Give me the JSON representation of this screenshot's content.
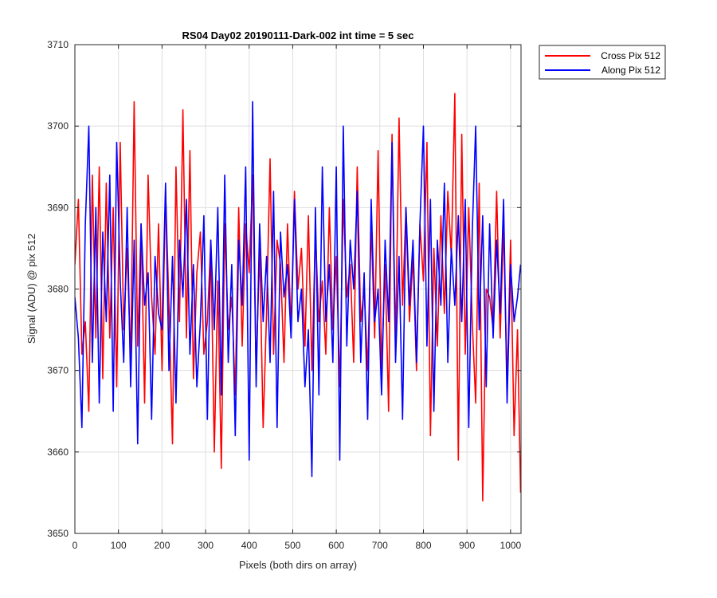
{
  "chart_data": {
    "type": "line",
    "title": "RS04 Day02 20190111-Dark-002 int time = 5 sec",
    "xlabel": "Pixels (both dirs on array)",
    "ylabel": "Signal (ADU) @ pix 512",
    "xlim": [
      0,
      1024
    ],
    "ylim": [
      3650,
      3710
    ],
    "xticks": [
      0,
      100,
      200,
      300,
      400,
      500,
      600,
      700,
      800,
      900,
      1000
    ],
    "yticks": [
      3650,
      3660,
      3670,
      3680,
      3690,
      3700,
      3710
    ],
    "grid": true,
    "legend_position": "outside-top-right",
    "series": [
      {
        "name": "Cross Pix 512",
        "color": "#ff0000",
        "x": [
          0,
          8,
          16,
          24,
          32,
          40,
          48,
          56,
          64,
          72,
          80,
          88,
          96,
          104,
          112,
          120,
          128,
          136,
          144,
          152,
          160,
          168,
          176,
          184,
          192,
          200,
          208,
          216,
          224,
          232,
          240,
          248,
          256,
          264,
          272,
          280,
          288,
          296,
          304,
          312,
          320,
          328,
          336,
          344,
          352,
          360,
          368,
          376,
          384,
          392,
          400,
          408,
          416,
          424,
          432,
          440,
          448,
          456,
          464,
          472,
          480,
          488,
          496,
          504,
          512,
          520,
          528,
          536,
          544,
          552,
          560,
          568,
          576,
          584,
          592,
          600,
          608,
          616,
          624,
          632,
          640,
          648,
          656,
          664,
          672,
          680,
          688,
          696,
          704,
          712,
          720,
          728,
          736,
          744,
          752,
          760,
          768,
          776,
          784,
          792,
          800,
          808,
          816,
          824,
          832,
          840,
          848,
          856,
          864,
          872,
          880,
          888,
          896,
          904,
          912,
          920,
          928,
          936,
          944,
          952,
          960,
          968,
          976,
          984,
          992,
          1000,
          1008,
          1016,
          1023
        ],
        "values": [
          3683,
          3691,
          3672,
          3676,
          3665,
          3694,
          3674,
          3695,
          3669,
          3693,
          3674,
          3690,
          3668,
          3698,
          3675,
          3685,
          3671,
          3703,
          3673,
          3688,
          3666,
          3694,
          3679,
          3672,
          3688,
          3670,
          3692,
          3678,
          3661,
          3695,
          3676,
          3702,
          3674,
          3697,
          3669,
          3682,
          3687,
          3672,
          3676,
          3686,
          3660,
          3681,
          3658,
          3688,
          3675,
          3679,
          3667,
          3690,
          3673,
          3688,
          3682,
          3694,
          3670,
          3685,
          3663,
          3677,
          3696,
          3672,
          3686,
          3683,
          3671,
          3688,
          3675,
          3692,
          3680,
          3685,
          3673,
          3689,
          3670,
          3687,
          3676,
          3681,
          3672,
          3690,
          3675,
          3684,
          3668,
          3691,
          3679,
          3683,
          3671,
          3695,
          3676,
          3680,
          3670,
          3688,
          3674,
          3697,
          3670,
          3683,
          3665,
          3699,
          3673,
          3701,
          3678,
          3690,
          3676,
          3684,
          3670,
          3688,
          3681,
          3698,
          3662,
          3685,
          3673,
          3689,
          3677,
          3692,
          3684,
          3704,
          3659,
          3699,
          3672,
          3690,
          3676,
          3666,
          3693,
          3654,
          3680,
          3679,
          3675,
          3692,
          3674,
          3688,
          3668,
          3686,
          3662,
          3675,
          3655
        ]
      },
      {
        "name": "Along Pix 512",
        "color": "#0000ff",
        "x": [
          0,
          8,
          16,
          24,
          32,
          40,
          48,
          56,
          64,
          72,
          80,
          88,
          96,
          104,
          112,
          120,
          128,
          136,
          144,
          152,
          160,
          168,
          176,
          184,
          192,
          200,
          208,
          216,
          224,
          232,
          240,
          248,
          256,
          264,
          272,
          280,
          288,
          296,
          304,
          312,
          320,
          328,
          336,
          344,
          352,
          360,
          368,
          376,
          384,
          392,
          400,
          408,
          416,
          424,
          432,
          440,
          448,
          456,
          464,
          472,
          480,
          488,
          496,
          504,
          512,
          520,
          528,
          536,
          544,
          552,
          560,
          568,
          576,
          584,
          592,
          600,
          608,
          616,
          624,
          632,
          640,
          648,
          656,
          664,
          672,
          680,
          688,
          696,
          704,
          712,
          720,
          728,
          736,
          744,
          752,
          760,
          768,
          776,
          784,
          792,
          800,
          808,
          816,
          824,
          832,
          840,
          848,
          856,
          864,
          872,
          880,
          888,
          896,
          904,
          912,
          920,
          928,
          936,
          944,
          952,
          960,
          968,
          976,
          984,
          992,
          1000,
          1008,
          1016,
          1023
        ],
        "values": [
          3679,
          3674,
          3663,
          3688,
          3700,
          3671,
          3690,
          3666,
          3687,
          3676,
          3694,
          3665,
          3698,
          3681,
          3671,
          3690,
          3668,
          3686,
          3661,
          3688,
          3678,
          3682,
          3664,
          3684,
          3677,
          3675,
          3693,
          3670,
          3684,
          3666,
          3686,
          3679,
          3691,
          3672,
          3683,
          3668,
          3676,
          3689,
          3664,
          3686,
          3675,
          3690,
          3667,
          3694,
          3671,
          3683,
          3662,
          3686,
          3678,
          3695,
          3659,
          3703,
          3668,
          3688,
          3676,
          3684,
          3671,
          3692,
          3663,
          3687,
          3679,
          3683,
          3674,
          3691,
          3676,
          3680,
          3668,
          3675,
          3657,
          3690,
          3667,
          3695,
          3676,
          3683,
          3671,
          3695,
          3659,
          3700,
          3673,
          3686,
          3680,
          3692,
          3671,
          3682,
          3664,
          3691,
          3676,
          3680,
          3667,
          3686,
          3676,
          3698,
          3671,
          3684,
          3664,
          3690,
          3678,
          3686,
          3671,
          3688,
          3700,
          3673,
          3691,
          3665,
          3686,
          3678,
          3693,
          3671,
          3685,
          3678,
          3689,
          3676,
          3691,
          3663,
          3687,
          3700,
          3675,
          3689,
          3668,
          3688,
          3674,
          3686,
          3677,
          3691,
          3666,
          3683,
          3676,
          3679,
          3683
        ]
      }
    ]
  }
}
